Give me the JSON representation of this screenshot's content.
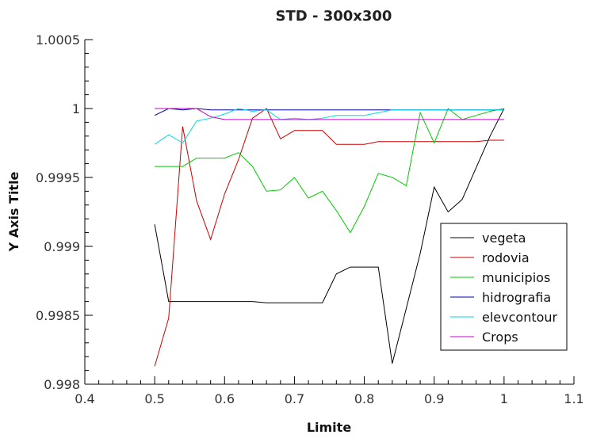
{
  "chart_data": {
    "type": "line",
    "title": "STD - 300x300",
    "xlabel": "Limite",
    "ylabel": "Y Axis Title",
    "xlim": [
      0.4,
      1.1
    ],
    "ylim": [
      0.998,
      1.0005
    ],
    "xticks": [
      0.4,
      0.5,
      0.6,
      0.7,
      0.8,
      0.9,
      1,
      1.1
    ],
    "xtick_labels": [
      "0.4",
      "0.5",
      "0.6",
      "0.7",
      "0.8",
      "0.9",
      "1",
      "1.1"
    ],
    "yticks": [
      0.998,
      0.9985,
      0.999,
      0.9995,
      1,
      1.0005
    ],
    "ytick_labels": [
      "0.998",
      "0.9985",
      "0.999",
      "0.9995",
      "1",
      "1.0005"
    ],
    "grid": false,
    "legend_position": "right",
    "x": [
      0.5,
      0.52,
      0.54,
      0.56,
      0.58,
      0.6,
      0.62,
      0.64,
      0.66,
      0.68,
      0.7,
      0.72,
      0.74,
      0.76,
      0.78,
      0.8,
      0.82,
      0.84,
      0.86,
      0.88,
      0.9,
      0.92,
      0.94,
      0.96,
      0.98,
      1
    ],
    "series": [
      {
        "name": "vegeta",
        "color": "#000000",
        "values": [
          0.99916,
          0.9986,
          0.9986,
          0.9986,
          0.9986,
          0.9986,
          0.9986,
          0.9986,
          0.99859,
          0.99859,
          0.99859,
          0.99859,
          0.99859,
          0.9988,
          0.99885,
          0.99885,
          0.99885,
          0.99815,
          0.99855,
          0.99895,
          0.99943,
          0.99925,
          0.99934,
          0.99957,
          0.9998,
          1.0
        ]
      },
      {
        "name": "rodovia",
        "color": "#cc0000",
        "values": [
          0.99813,
          0.99848,
          0.99987,
          0.99933,
          0.99905,
          0.99938,
          0.99963,
          0.99993,
          1.0,
          0.99978,
          0.99984,
          0.99984,
          0.99984,
          0.99974,
          0.99974,
          0.99974,
          0.99976,
          0.99976,
          0.99976,
          0.99976,
          0.99976,
          0.99976,
          0.99976,
          0.99976,
          0.99977,
          0.99977
        ]
      },
      {
        "name": "municipios",
        "color": "#00cc00",
        "values": [
          0.99958,
          0.99958,
          0.99958,
          0.99964,
          0.99964,
          0.99964,
          0.99968,
          0.99958,
          0.9994,
          0.99941,
          0.9995,
          0.99935,
          0.9994,
          0.99926,
          0.9991,
          0.99929,
          0.99953,
          0.9995,
          0.99944,
          0.99997,
          0.99975,
          1.0,
          0.99992,
          0.99995,
          0.99998,
          1.0
        ]
      },
      {
        "name": "hidrografia",
        "color": "#0000aa",
        "values": [
          0.99995,
          1.0,
          0.99999,
          1.0,
          0.99999,
          0.99999,
          0.99999,
          0.99999,
          0.99999,
          0.99999,
          0.99999,
          0.99999,
          0.99999,
          0.99999,
          0.99999,
          0.99999,
          0.99999,
          0.99999,
          0.99999,
          0.99999,
          0.99999,
          0.99999,
          0.99999,
          0.99999,
          0.99999,
          0.99999
        ]
      },
      {
        "name": "elevcontour",
        "color": "#00dddd",
        "values": [
          0.99974,
          0.99981,
          0.99975,
          0.99991,
          0.99993,
          0.99996,
          1.0,
          0.99998,
          0.99999,
          0.99992,
          0.99993,
          0.99992,
          0.99993,
          0.99995,
          0.99995,
          0.99995,
          0.99997,
          0.99999,
          0.99999,
          0.99999,
          0.99999,
          0.99999,
          0.99999,
          0.99999,
          0.99999,
          0.99999
        ]
      },
      {
        "name": "Crops",
        "color": "#cc00cc",
        "values": [
          1.0,
          1.0,
          1.0,
          1.0,
          0.99994,
          0.99992,
          0.99992,
          0.99992,
          0.99992,
          0.99992,
          0.99992,
          0.99992,
          0.99992,
          0.99992,
          0.99992,
          0.99992,
          0.99992,
          0.99992,
          0.99992,
          0.99992,
          0.99992,
          0.99992,
          0.99992,
          0.99992,
          0.99992,
          0.99992
        ]
      }
    ]
  }
}
